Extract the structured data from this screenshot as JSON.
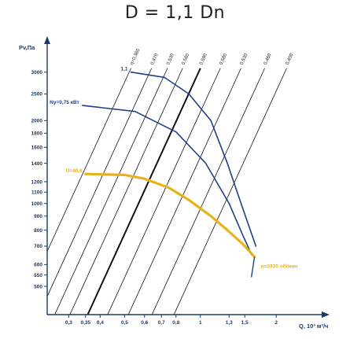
{
  "chart_data": {
    "type": "line",
    "title": "D = 1,1 Dn",
    "xlabel": "Q, 10³ м³/ч",
    "ylabel": "Pv,Па",
    "x_scale": "log",
    "y_scale": "log",
    "xlim": [
      0.25,
      2.8
    ],
    "ylim": [
      400,
      3600
    ],
    "x_ticks": [
      {
        "v": 0.3,
        "label": "0,3"
      },
      {
        "v": 0.35,
        "label": "0,35"
      },
      {
        "v": 0.4,
        "label": "0,4"
      },
      {
        "v": 0.5,
        "label": "0,5"
      },
      {
        "v": 0.6,
        "label": "0,6"
      },
      {
        "v": 0.7,
        "label": "0,7"
      },
      {
        "v": 0.8,
        "label": "0,8"
      },
      {
        "v": 1,
        "label": "1"
      },
      {
        "v": 1.3,
        "label": "1,3"
      },
      {
        "v": 1.5,
        "label": "1,5"
      },
      {
        "v": 2,
        "label": "2"
      }
    ],
    "y_ticks": [
      {
        "v": 500,
        "label": "500"
      },
      {
        "v": 550,
        "label": "550"
      },
      {
        "v": 600,
        "label": "600"
      },
      {
        "v": 700,
        "label": "700"
      },
      {
        "v": 800,
        "label": "800"
      },
      {
        "v": 900,
        "label": "900"
      },
      {
        "v": 1000,
        "label": "1000"
      },
      {
        "v": 1100,
        "label": "1100"
      },
      {
        "v": 1200,
        "label": "1200"
      },
      {
        "v": 1400,
        "label": "1400"
      },
      {
        "v": 1600,
        "label": "1600"
      },
      {
        "v": 1800,
        "label": "1800"
      },
      {
        "v": 2000,
        "label": "2000"
      },
      {
        "v": 2500,
        "label": "2500"
      },
      {
        "v": 3000,
        "label": "3000"
      }
    ],
    "efficiency_lines": [
      {
        "label": "η=0,360",
        "x_at_top": 0.53
      },
      {
        "label": "0,470",
        "x_at_top": 0.64
      },
      {
        "label": "0,530",
        "x_at_top": 0.74
      },
      {
        "label": "0,560",
        "x_at_top": 0.85
      },
      {
        "label": "0,590",
        "x_at_top": 1.0,
        "bold": true
      },
      {
        "label": "0,580",
        "x_at_top": 1.2
      },
      {
        "label": "0,530",
        "x_at_top": 1.45
      },
      {
        "label": "0,460",
        "x_at_top": 1.8
      },
      {
        "label": "0,400",
        "x_at_top": 2.2
      }
    ],
    "series": [
      {
        "label": "1,1",
        "color": "#1f3f8a",
        "points": [
          [
            0.53,
            3000
          ],
          [
            0.72,
            2870
          ],
          [
            0.9,
            2500
          ],
          [
            1.1,
            2000
          ],
          [
            1.28,
            1400
          ],
          [
            1.45,
            1000
          ],
          [
            1.66,
            700
          ]
        ]
      },
      {
        "label": "Ny=0,75 кВт",
        "color": "#1f3f8a",
        "points": [
          [
            0.34,
            2270
          ],
          [
            0.55,
            2160
          ],
          [
            0.8,
            1820
          ],
          [
            1.05,
            1400
          ],
          [
            1.3,
            1000
          ],
          [
            1.48,
            760
          ],
          [
            1.6,
            650
          ]
        ]
      },
      {
        "label": "U=40,6",
        "color": "#e8b21e",
        "points": [
          [
            0.35,
            1280
          ],
          [
            0.5,
            1270
          ],
          [
            0.6,
            1230
          ],
          [
            0.75,
            1140
          ],
          [
            0.9,
            1030
          ],
          [
            1.1,
            900
          ],
          [
            1.3,
            790
          ],
          [
            1.48,
            710
          ],
          [
            1.64,
            640
          ]
        ]
      }
    ],
    "annotations": [
      {
        "text": "n=2835 об/мин",
        "color": "#e8b21e"
      }
    ]
  }
}
